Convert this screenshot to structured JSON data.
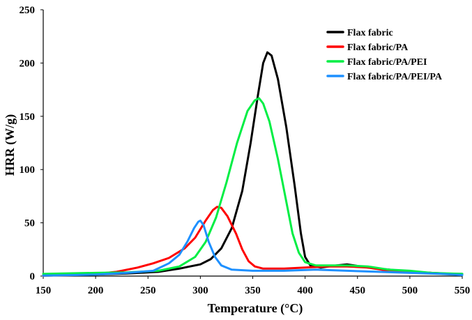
{
  "chart_data": {
    "type": "line",
    "title": "",
    "xlabel": "Temperature (°C)",
    "ylabel": "HRR (W/g)",
    "xlim": [
      150,
      550
    ],
    "ylim": [
      0,
      250
    ],
    "x_ticks": [
      150,
      200,
      250,
      300,
      350,
      400,
      450,
      500,
      550
    ],
    "y_ticks": [
      0,
      50,
      100,
      150,
      200,
      250
    ],
    "grid": false,
    "legend_position": "top-right",
    "series": [
      {
        "name": "Flax fabric",
        "color": "#000000",
        "points": [
          [
            150,
            0.5
          ],
          [
            180,
            1
          ],
          [
            200,
            1.5
          ],
          [
            230,
            2.5
          ],
          [
            260,
            4
          ],
          [
            280,
            7
          ],
          [
            290,
            9
          ],
          [
            300,
            11
          ],
          [
            310,
            16
          ],
          [
            320,
            26
          ],
          [
            330,
            45
          ],
          [
            340,
            80
          ],
          [
            348,
            125
          ],
          [
            355,
            170
          ],
          [
            360,
            200
          ],
          [
            364,
            210
          ],
          [
            368,
            207
          ],
          [
            374,
            185
          ],
          [
            382,
            140
          ],
          [
            390,
            85
          ],
          [
            396,
            40
          ],
          [
            400,
            18
          ],
          [
            405,
            10
          ],
          [
            415,
            8
          ],
          [
            430,
            10
          ],
          [
            440,
            11
          ],
          [
            460,
            8
          ],
          [
            480,
            6
          ],
          [
            500,
            4
          ],
          [
            520,
            3
          ],
          [
            540,
            2
          ],
          [
            550,
            2
          ]
        ]
      },
      {
        "name": "Flax fabric/PA",
        "color": "#ff0000",
        "points": [
          [
            150,
            0.5
          ],
          [
            180,
            1
          ],
          [
            200,
            2
          ],
          [
            220,
            4
          ],
          [
            240,
            8
          ],
          [
            255,
            12
          ],
          [
            270,
            17
          ],
          [
            285,
            26
          ],
          [
            295,
            36
          ],
          [
            305,
            52
          ],
          [
            312,
            62
          ],
          [
            316,
            65
          ],
          [
            320,
            64
          ],
          [
            326,
            56
          ],
          [
            334,
            40
          ],
          [
            340,
            25
          ],
          [
            346,
            14
          ],
          [
            352,
            9
          ],
          [
            360,
            7
          ],
          [
            380,
            7
          ],
          [
            400,
            8
          ],
          [
            420,
            9
          ],
          [
            440,
            9
          ],
          [
            460,
            8
          ],
          [
            480,
            5
          ],
          [
            500,
            4
          ],
          [
            520,
            3
          ],
          [
            550,
            1.5
          ]
        ]
      },
      {
        "name": "Flax fabric/PA/PEI",
        "color": "#00ee44",
        "points": [
          [
            150,
            2
          ],
          [
            170,
            2.5
          ],
          [
            200,
            3
          ],
          [
            230,
            3.5
          ],
          [
            260,
            5
          ],
          [
            280,
            9
          ],
          [
            295,
            18
          ],
          [
            305,
            32
          ],
          [
            315,
            55
          ],
          [
            325,
            88
          ],
          [
            335,
            125
          ],
          [
            345,
            155
          ],
          [
            352,
            165
          ],
          [
            356,
            167
          ],
          [
            360,
            162
          ],
          [
            366,
            145
          ],
          [
            374,
            110
          ],
          [
            382,
            70
          ],
          [
            388,
            40
          ],
          [
            394,
            22
          ],
          [
            400,
            13
          ],
          [
            410,
            10
          ],
          [
            425,
            10
          ],
          [
            440,
            10
          ],
          [
            460,
            9
          ],
          [
            480,
            6
          ],
          [
            500,
            5
          ],
          [
            520,
            3
          ],
          [
            550,
            2
          ]
        ]
      },
      {
        "name": "Flax fabric/PA/PEI/PA",
        "color": "#1e90ff",
        "points": [
          [
            150,
            0.5
          ],
          [
            180,
            1
          ],
          [
            200,
            1.5
          ],
          [
            230,
            3
          ],
          [
            255,
            5
          ],
          [
            270,
            12
          ],
          [
            280,
            20
          ],
          [
            288,
            33
          ],
          [
            294,
            45
          ],
          [
            298,
            51
          ],
          [
            300,
            52
          ],
          [
            303,
            48
          ],
          [
            308,
            32
          ],
          [
            314,
            18
          ],
          [
            320,
            10
          ],
          [
            330,
            6
          ],
          [
            350,
            5
          ],
          [
            380,
            5
          ],
          [
            410,
            6
          ],
          [
            440,
            5
          ],
          [
            470,
            4
          ],
          [
            500,
            3
          ],
          [
            530,
            2
          ],
          [
            550,
            1
          ]
        ]
      }
    ]
  }
}
